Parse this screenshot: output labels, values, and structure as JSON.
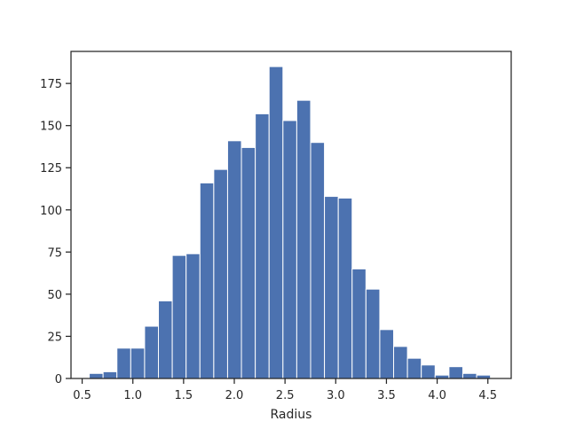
{
  "chart_data": {
    "type": "bar",
    "subtype": "histogram",
    "title": "",
    "xlabel": "Radius",
    "ylabel": "",
    "xlim": [
      0.39,
      4.73
    ],
    "ylim": [
      0,
      194
    ],
    "xticks": [
      0.5,
      1.0,
      1.5,
      2.0,
      2.5,
      3.0,
      3.5,
      4.0,
      4.5
    ],
    "xtick_labels": [
      "0.5",
      "1.0",
      "1.5",
      "2.0",
      "2.5",
      "3.0",
      "3.5",
      "4.0",
      "4.5"
    ],
    "yticks": [
      0,
      25,
      50,
      75,
      100,
      125,
      150,
      175
    ],
    "ytick_labels": [
      "0",
      "25",
      "50",
      "75",
      "100",
      "125",
      "150",
      "175"
    ],
    "bins": {
      "start": 0.57,
      "width": 0.1364
    },
    "values": [
      3,
      4,
      18,
      18,
      31,
      46,
      73,
      74,
      116,
      124,
      141,
      137,
      157,
      185,
      153,
      165,
      140,
      108,
      107,
      65,
      53,
      29,
      19,
      12,
      8,
      2,
      7,
      3,
      2
    ],
    "bar_color": "#4c72b0",
    "grid": false,
    "legend": "none"
  }
}
